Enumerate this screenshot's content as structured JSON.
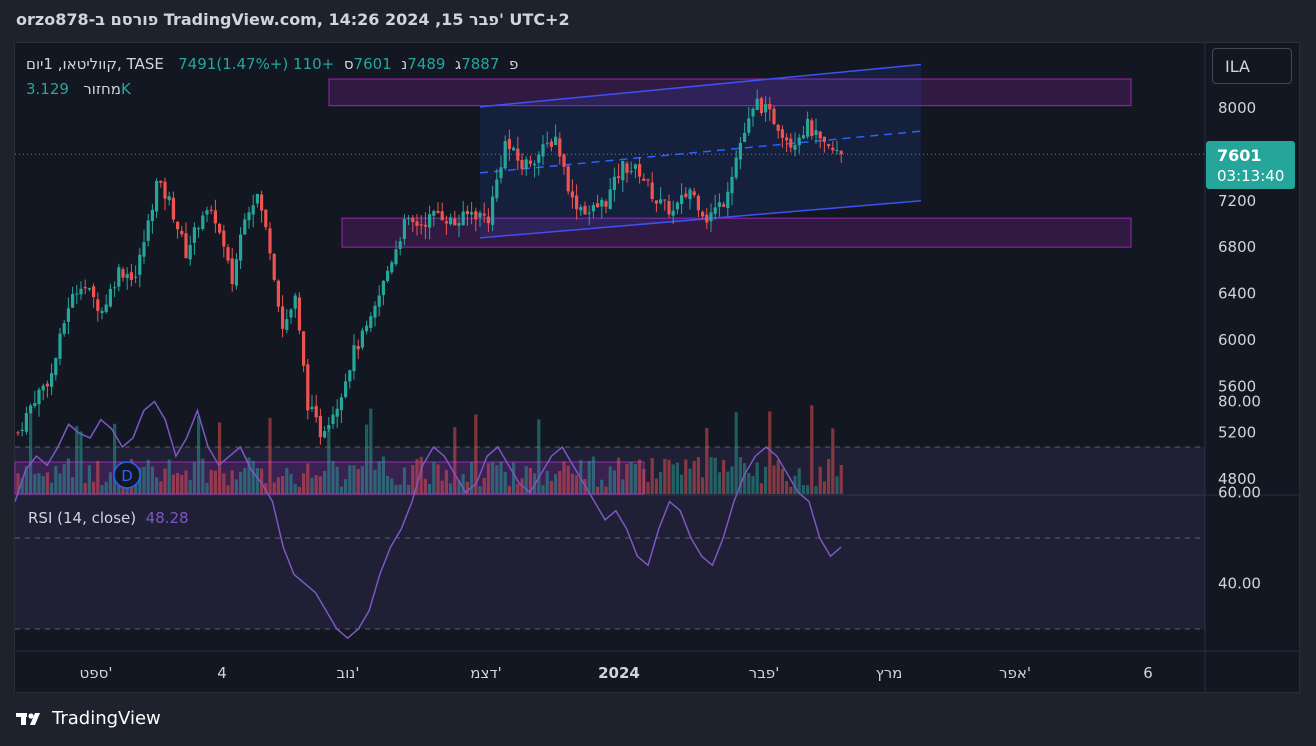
{
  "header": {
    "title": "orzo878-פורסם ב TradingView.com, 14:26 2024 ,15 פבר' UTC+2"
  },
  "legend": {
    "symbol": "קווליטאו, 1יום, TASE",
    "open_label": "פ",
    "open": "7491",
    "high_label": "ג",
    "high": "7887",
    "low_label": "נ",
    "low": "7489",
    "close_label": "ס",
    "close": "7601",
    "change": "+110 (+1.47%)",
    "volume_label": "מחזור",
    "volume": "3.129K"
  },
  "price_scale": {
    "currency": "ILA",
    "last_price": "7601",
    "countdown": "03:13:40"
  },
  "rsi": {
    "label": "RSI (14, close)",
    "value": "48.28"
  },
  "marker": {
    "label": "D"
  },
  "branding": {
    "name": "TradingView"
  },
  "colors": {
    "up": "#26a69a",
    "down": "#ef5350",
    "channel": "#3f51f5",
    "zone": "#9c27b0",
    "rsi": "#7e57c2",
    "text": "#d1d4dc"
  },
  "chart_data": [
    {
      "type": "candlestick",
      "title": "",
      "xlabel": "",
      "ylabel": "",
      "x_ticks": [
        "ספט'",
        "4",
        "נוב'",
        "דצמ'",
        "2024",
        "פבר'",
        "מרץ",
        "אפר'",
        "6"
      ],
      "y_ticks": [
        4800,
        5200,
        5600,
        6000,
        6400,
        6800,
        7200,
        8000
      ],
      "ylim": [
        4660,
        8580
      ],
      "approx_close_path": [
        [
          0,
          5200
        ],
        [
          4,
          5500
        ],
        [
          8,
          5700
        ],
        [
          12,
          6300
        ],
        [
          15,
          6500
        ],
        [
          20,
          6250
        ],
        [
          24,
          6600
        ],
        [
          28,
          6550
        ],
        [
          31,
          7000
        ],
        [
          33,
          7350
        ],
        [
          36,
          7200
        ],
        [
          40,
          6750
        ],
        [
          44,
          7100
        ],
        [
          47,
          7050
        ],
        [
          51,
          6500
        ],
        [
          54,
          7100
        ],
        [
          57,
          7250
        ],
        [
          60,
          6800
        ],
        [
          63,
          6100
        ],
        [
          66,
          6350
        ],
        [
          69,
          5450
        ],
        [
          72,
          5200
        ],
        [
          76,
          5450
        ],
        [
          80,
          5900
        ],
        [
          84,
          6150
        ],
        [
          88,
          6600
        ],
        [
          92,
          7000
        ],
        [
          96,
          7000
        ],
        [
          100,
          7100
        ],
        [
          104,
          7000
        ],
        [
          108,
          7100
        ],
        [
          112,
          7050
        ],
        [
          116,
          7700
        ],
        [
          120,
          7500
        ],
        [
          124,
          7600
        ],
        [
          128,
          7750
        ],
        [
          132,
          7200
        ],
        [
          136,
          7100
        ],
        [
          140,
          7200
        ],
        [
          144,
          7500
        ],
        [
          148,
          7450
        ],
        [
          152,
          7200
        ],
        [
          156,
          7100
        ],
        [
          160,
          7300
        ],
        [
          164,
          7050
        ],
        [
          168,
          7200
        ],
        [
          172,
          7700
        ],
        [
          176,
          8050
        ],
        [
          180,
          7900
        ],
        [
          184,
          7700
        ],
        [
          188,
          7850
        ],
        [
          192,
          7650
        ],
        [
          196,
          7601
        ]
      ],
      "volume_max_approx": 40000,
      "channel": {
        "upper": [
          [
            110,
            8010
          ],
          [
            215,
            8375
          ]
        ],
        "lower": [
          [
            110,
            6880
          ],
          [
            215,
            7200
          ]
        ],
        "mid": [
          [
            110,
            7440
          ],
          [
            215,
            7800
          ]
        ]
      },
      "zones": [
        [
          8020,
          8250
        ],
        [
          6800,
          7050
        ]
      ],
      "last": 7601
    },
    {
      "type": "line",
      "title": "",
      "series": [
        {
          "name": "RSI (14, close)",
          "values": [
            58,
            65,
            68,
            66,
            70,
            75,
            73,
            72,
            76,
            74,
            70,
            72,
            78,
            80,
            76,
            68,
            72,
            78,
            70,
            66,
            68,
            70,
            65,
            62,
            58,
            48,
            42,
            40,
            38,
            34,
            30,
            28,
            30,
            34,
            42,
            48,
            52,
            58,
            66,
            70,
            68,
            64,
            60,
            62,
            68,
            70,
            66,
            62,
            60,
            64,
            68,
            70,
            66,
            62,
            58,
            54,
            56,
            52,
            46,
            44,
            52,
            58,
            56,
            50,
            46,
            44,
            50,
            58,
            64,
            68,
            70,
            68,
            64,
            60,
            58,
            50,
            46,
            48
          ]
        }
      ],
      "y_ticks": [
        40,
        60,
        80
      ],
      "bands": [
        30,
        50,
        70
      ],
      "ylim": [
        20,
        90
      ],
      "last": 48.28
    }
  ]
}
